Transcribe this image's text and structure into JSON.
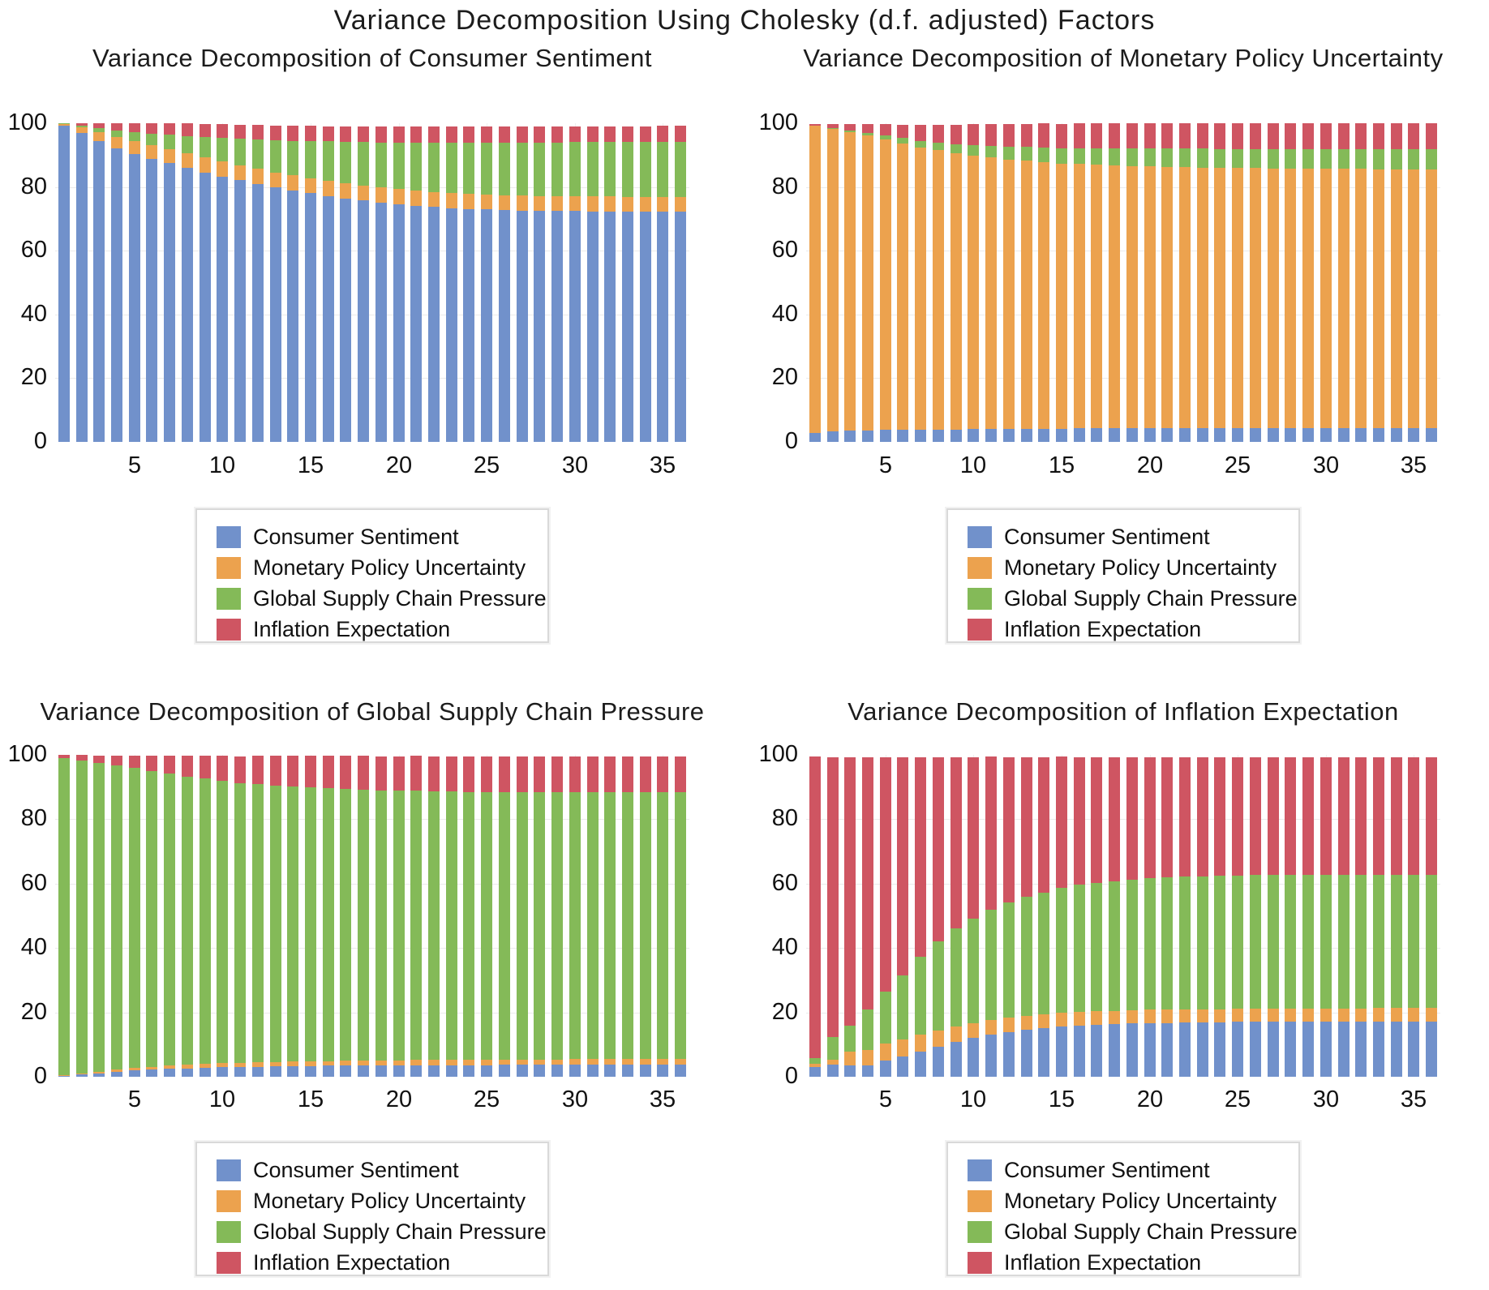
{
  "page": {
    "main_title": "Variance Decomposition Using Cholesky (d.f. adjusted) Factors"
  },
  "colors": {
    "consumer_sentiment": "#7191cb",
    "monetary_policy_uncertainty": "#eca24e",
    "global_supply_chain_pressure": "#84ba58",
    "inflation_expectation": "#cf5562",
    "gridline": "#ebebeb",
    "text": "#111111",
    "legend_border": "#d9d9d9"
  },
  "legend_labels": [
    "Consumer Sentiment",
    "Monetary Policy Uncertainty",
    "Global Supply Chain Pressure",
    "Inflation Expectation"
  ],
  "chart_data": [
    {
      "type": "bar",
      "stacked": true,
      "title": "Variance Decomposition of Consumer Sentiment",
      "x_range": [
        1,
        36
      ],
      "x_ticks": [
        5,
        10,
        15,
        20,
        25,
        30,
        35
      ],
      "y_ticks": [
        0,
        20,
        40,
        60,
        80,
        100
      ],
      "ylim": [
        0,
        100
      ],
      "grid": true,
      "legend_position": "below",
      "series": [
        {
          "name": "Consumer Sentiment",
          "color_key": "consumer_sentiment",
          "values": [
            99.3,
            96.9,
            94.4,
            92.2,
            90.3,
            88.8,
            87.4,
            86.0,
            84.6,
            83.3,
            82.1,
            81.0,
            79.9,
            78.9,
            78.0,
            77.2,
            76.4,
            75.7,
            75.1,
            74.6,
            74.1,
            73.7,
            73.4,
            73.1,
            72.9,
            72.7,
            72.6,
            72.5,
            72.4,
            72.4,
            72.3,
            72.3,
            72.2,
            72.2,
            72.2,
            72.2
          ]
        },
        {
          "name": "Monetary Policy Uncertainty",
          "color_key": "monetary_policy_uncertainty",
          "values": [
            0.5,
            1.8,
            2.8,
            3.5,
            4.0,
            4.3,
            4.5,
            4.6,
            4.7,
            4.7,
            4.7,
            4.7,
            4.7,
            4.7,
            4.7,
            4.7,
            4.7,
            4.7,
            4.7,
            4.7,
            4.7,
            4.7,
            4.7,
            4.7,
            4.7,
            4.7,
            4.7,
            4.7,
            4.7,
            4.7,
            4.7,
            4.7,
            4.7,
            4.7,
            4.7,
            4.7
          ]
        },
        {
          "name": "Global Supply Chain Pressure",
          "color_key": "global_supply_chain_pressure",
          "values": [
            0.1,
            0.5,
            1.2,
            1.9,
            2.8,
            3.6,
            4.5,
            5.4,
            6.4,
            7.4,
            8.3,
            9.2,
            10.1,
            10.9,
            11.7,
            12.4,
            13.1,
            13.7,
            14.2,
            14.7,
            15.1,
            15.5,
            15.8,
            16.1,
            16.3,
            16.5,
            16.7,
            16.8,
            16.9,
            17.0,
            17.1,
            17.1,
            17.2,
            17.2,
            17.3,
            17.3
          ]
        },
        {
          "name": "Inflation Expectation",
          "color_key": "inflation_expectation",
          "values": [
            0.1,
            0.8,
            1.6,
            2.4,
            2.9,
            3.3,
            3.6,
            3.9,
            4.1,
            4.3,
            4.4,
            4.5,
            4.6,
            4.7,
            4.8,
            4.8,
            4.9,
            4.9,
            4.9,
            5.0,
            5.0,
            5.0,
            5.0,
            5.0,
            5.0,
            5.0,
            5.0,
            5.0,
            5.0,
            5.0,
            5.0,
            5.0,
            5.0,
            5.0,
            5.0,
            5.0
          ]
        }
      ]
    },
    {
      "type": "bar",
      "stacked": true,
      "title": "Variance Decomposition of Monetary Policy Uncertainty",
      "x_range": [
        1,
        36
      ],
      "x_ticks": [
        5,
        10,
        15,
        20,
        25,
        30,
        35
      ],
      "y_ticks": [
        0,
        20,
        40,
        60,
        80,
        100
      ],
      "ylim": [
        0,
        100
      ],
      "grid": true,
      "legend_position": "below",
      "series": [
        {
          "name": "Consumer Sentiment",
          "color_key": "consumer_sentiment",
          "values": [
            2.8,
            3.2,
            3.5,
            3.6,
            3.7,
            3.8,
            3.8,
            3.9,
            3.9,
            4.0,
            4.0,
            4.0,
            4.1,
            4.1,
            4.1,
            4.2,
            4.2,
            4.2,
            4.2,
            4.3,
            4.3,
            4.3,
            4.3,
            4.3,
            4.3,
            4.3,
            4.3,
            4.3,
            4.3,
            4.3,
            4.3,
            4.3,
            4.3,
            4.3,
            4.3,
            4.3
          ]
        },
        {
          "name": "Monetary Policy Uncertainty",
          "color_key": "monetary_policy_uncertainty",
          "values": [
            96.4,
            95.0,
            93.7,
            92.5,
            91.1,
            89.8,
            88.6,
            87.6,
            86.7,
            85.9,
            85.2,
            84.6,
            84.1,
            83.7,
            83.3,
            83.0,
            82.7,
            82.5,
            82.3,
            82.1,
            82.0,
            81.9,
            81.8,
            81.7,
            81.6,
            81.6,
            81.5,
            81.5,
            81.4,
            81.4,
            81.4,
            81.4,
            81.3,
            81.3,
            81.3,
            81.3
          ]
        },
        {
          "name": "Global Supply Chain Pressure",
          "color_key": "global_supply_chain_pressure",
          "values": [
            0.1,
            0.3,
            0.6,
            0.9,
            1.3,
            1.7,
            2.1,
            2.5,
            2.9,
            3.3,
            3.7,
            4.0,
            4.3,
            4.6,
            4.8,
            5.0,
            5.2,
            5.4,
            5.5,
            5.6,
            5.7,
            5.8,
            5.9,
            5.9,
            6.0,
            6.0,
            6.1,
            6.1,
            6.1,
            6.1,
            6.2,
            6.2,
            6.2,
            6.2,
            6.2,
            6.2
          ]
        },
        {
          "name": "Inflation Expectation",
          "color_key": "inflation_expectation",
          "values": [
            0.4,
            1.2,
            2.0,
            2.8,
            3.6,
            4.3,
            5.0,
            5.6,
            6.1,
            6.5,
            6.8,
            7.1,
            7.3,
            7.5,
            7.6,
            7.7,
            7.8,
            7.9,
            7.9,
            8.0,
            8.0,
            8.0,
            8.0,
            8.1,
            8.1,
            8.1,
            8.1,
            8.1,
            8.1,
            8.1,
            8.1,
            8.1,
            8.1,
            8.1,
            8.1,
            8.1
          ]
        }
      ]
    },
    {
      "type": "bar",
      "stacked": true,
      "title": "Variance Decomposition of Global Supply Chain Pressure",
      "x_range": [
        1,
        36
      ],
      "x_ticks": [
        5,
        10,
        15,
        20,
        25,
        30,
        35
      ],
      "y_ticks": [
        0,
        20,
        40,
        60,
        80,
        100
      ],
      "ylim": [
        0,
        100
      ],
      "grid": true,
      "legend_position": "below",
      "series": [
        {
          "name": "Consumer Sentiment",
          "color_key": "consumer_sentiment",
          "values": [
            0.3,
            0.7,
            1.1,
            1.5,
            1.9,
            2.2,
            2.4,
            2.6,
            2.8,
            2.9,
            3.0,
            3.1,
            3.2,
            3.3,
            3.3,
            3.4,
            3.4,
            3.5,
            3.5,
            3.5,
            3.6,
            3.6,
            3.6,
            3.6,
            3.6,
            3.7,
            3.7,
            3.7,
            3.7,
            3.7,
            3.7,
            3.7,
            3.7,
            3.7,
            3.7,
            3.7
          ]
        },
        {
          "name": "Monetary Policy Uncertainty",
          "color_key": "monetary_policy_uncertainty",
          "values": [
            0.2,
            0.4,
            0.5,
            0.7,
            0.8,
            0.9,
            1.0,
            1.1,
            1.2,
            1.3,
            1.3,
            1.4,
            1.4,
            1.5,
            1.5,
            1.5,
            1.6,
            1.6,
            1.6,
            1.6,
            1.7,
            1.7,
            1.7,
            1.7,
            1.7,
            1.7,
            1.7,
            1.7,
            1.7,
            1.8,
            1.8,
            1.8,
            1.8,
            1.8,
            1.8,
            1.8
          ]
        },
        {
          "name": "Global Supply Chain Pressure",
          "color_key": "global_supply_chain_pressure",
          "values": [
            98.4,
            97.2,
            95.9,
            94.5,
            93.2,
            91.9,
            90.7,
            89.6,
            88.6,
            87.8,
            87.0,
            86.4,
            85.9,
            85.4,
            85.0,
            84.7,
            84.4,
            84.1,
            83.9,
            83.7,
            83.6,
            83.4,
            83.3,
            83.2,
            83.2,
            83.1,
            83.0,
            83.0,
            82.9,
            82.9,
            82.9,
            82.9,
            82.8,
            82.8,
            82.8,
            82.8
          ]
        },
        {
          "name": "Inflation Expectation",
          "color_key": "inflation_expectation",
          "values": [
            1.0,
            1.6,
            2.3,
            3.1,
            3.9,
            4.8,
            5.6,
            6.4,
            7.1,
            7.7,
            8.3,
            8.8,
            9.2,
            9.6,
            9.9,
            10.1,
            10.3,
            10.5,
            10.6,
            10.8,
            10.8,
            10.9,
            11.0,
            11.0,
            11.1,
            11.1,
            11.1,
            11.2,
            11.2,
            11.2,
            11.2,
            11.2,
            11.2,
            11.2,
            11.2,
            11.2
          ]
        }
      ]
    },
    {
      "type": "bar",
      "stacked": true,
      "title": "Variance Decomposition of Inflation Expectation",
      "x_range": [
        1,
        36
      ],
      "x_ticks": [
        5,
        10,
        15,
        20,
        25,
        30,
        35
      ],
      "y_ticks": [
        0,
        20,
        40,
        60,
        80,
        100
      ],
      "ylim": [
        0,
        100
      ],
      "grid": true,
      "legend_position": "below",
      "series": [
        {
          "name": "Consumer Sentiment",
          "color_key": "consumer_sentiment",
          "values": [
            2.9,
            3.8,
            3.4,
            3.6,
            5.0,
            6.3,
            7.8,
            9.4,
            10.9,
            12.1,
            13.1,
            13.9,
            14.6,
            15.1,
            15.5,
            15.9,
            16.1,
            16.3,
            16.5,
            16.6,
            16.7,
            16.8,
            16.9,
            16.9,
            17.0,
            17.0,
            17.0,
            17.1,
            17.1,
            17.1,
            17.1,
            17.1,
            17.2,
            17.2,
            17.2,
            17.2
          ]
        },
        {
          "name": "Monetary Policy Uncertainty",
          "color_key": "monetary_policy_uncertainty",
          "values": [
            1.2,
            1.5,
            4.3,
            4.8,
            5.2,
            5.4,
            5.2,
            4.9,
            4.7,
            4.6,
            4.5,
            4.4,
            4.4,
            4.3,
            4.3,
            4.3,
            4.2,
            4.2,
            4.2,
            4.2,
            4.1,
            4.1,
            4.1,
            4.1,
            4.1,
            4.1,
            4.1,
            4.1,
            4.1,
            4.1,
            4.1,
            4.1,
            4.1,
            4.1,
            4.1,
            4.1
          ]
        },
        {
          "name": "Global Supply Chain Pressure",
          "color_key": "global_supply_chain_pressure",
          "values": [
            1.8,
            7.0,
            8.1,
            12.5,
            16.2,
            19.8,
            24.4,
            27.8,
            30.6,
            32.5,
            34.3,
            35.8,
            36.9,
            37.9,
            38.8,
            39.4,
            39.9,
            40.3,
            40.6,
            40.9,
            41.1,
            41.2,
            41.3,
            41.4,
            41.4,
            41.5,
            41.5,
            41.5,
            41.5,
            41.5,
            41.5,
            41.5,
            41.5,
            41.5,
            41.5,
            41.5
          ]
        },
        {
          "name": "Inflation Expectation",
          "color_key": "inflation_expectation",
          "values": [
            93.5,
            87.0,
            83.5,
            78.3,
            72.9,
            67.8,
            61.9,
            57.2,
            53.1,
            50.1,
            47.5,
            45.2,
            43.4,
            42.0,
            40.8,
            39.7,
            39.0,
            38.5,
            38.0,
            37.6,
            37.4,
            37.2,
            37.0,
            36.9,
            36.8,
            36.7,
            36.7,
            36.6,
            36.6,
            36.6,
            36.6,
            36.6,
            36.5,
            36.5,
            36.5,
            36.5
          ]
        }
      ]
    }
  ]
}
